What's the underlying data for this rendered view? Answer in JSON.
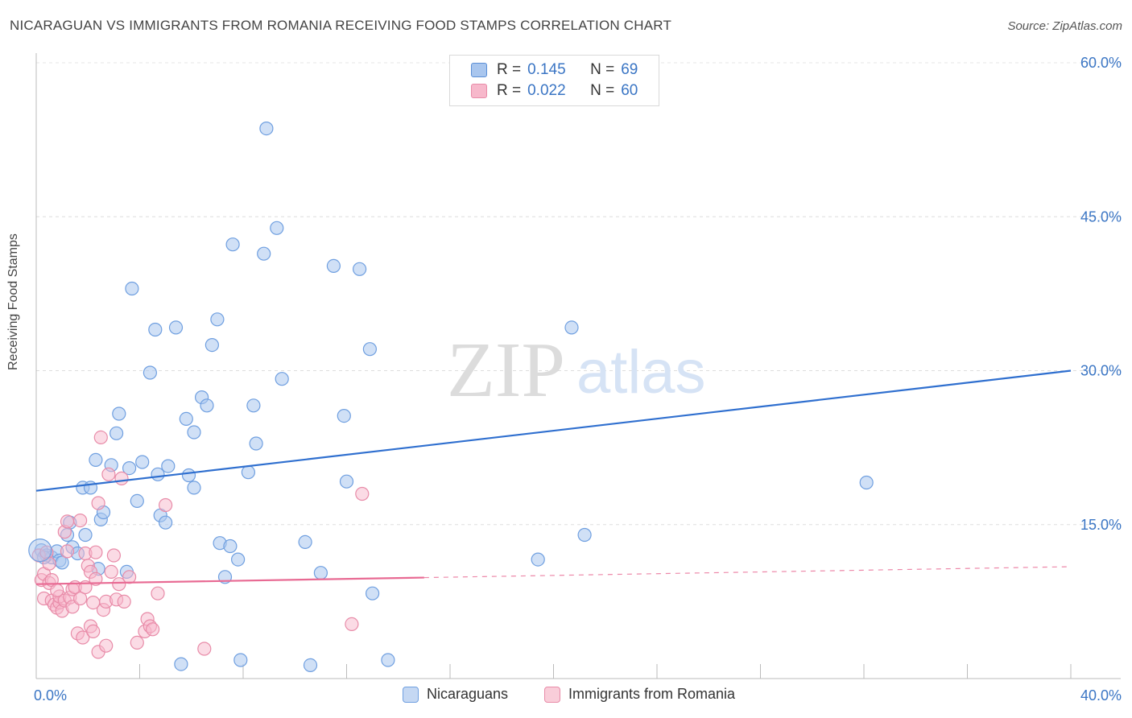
{
  "title": "NICARAGUAN VS IMMIGRANTS FROM ROMANIA RECEIVING FOOD STAMPS CORRELATION CHART",
  "source": "Source: ZipAtlas.com",
  "watermark": {
    "zip": "ZIP",
    "atlas": "atlas"
  },
  "legend_top": {
    "r_label": "R =",
    "n_label": "N =",
    "rows": [
      {
        "r": "0.145",
        "n": "69",
        "color": "#a9c6ee",
        "stroke": "#5b8fd6"
      },
      {
        "r": "0.022",
        "n": "60",
        "color": "#f7b8cb",
        "stroke": "#e88ba8"
      }
    ]
  },
  "bottom_legend": [
    {
      "label": "Nicaraguans",
      "color": "#c5d8f3",
      "stroke": "#6f9fe0"
    },
    {
      "label": "Immigrants from Romania",
      "color": "#f9cdd9",
      "stroke": "#e88ba8"
    }
  ],
  "chart_data": {
    "type": "scatter",
    "title": "NICARAGUAN VS IMMIGRANTS FROM ROMANIA RECEIVING FOOD STAMPS CORRELATION CHART",
    "xlabel": "",
    "ylabel": "Receiving Food Stamps",
    "xlim": [
      0,
      40
    ],
    "ylim": [
      0,
      60
    ],
    "x_tick_labels": [
      "0.0%",
      "40.0%"
    ],
    "y_tick_labels": [
      "15.0%",
      "30.0%",
      "45.0%",
      "60.0%"
    ],
    "y_ticks": [
      15,
      30,
      45,
      60
    ],
    "grid": true,
    "series": [
      {
        "name": "Nicaraguans",
        "color": "#a9c6ee",
        "stroke": "#6f9fe0",
        "line_color": "#2f6fcf",
        "trend": {
          "x": [
            0,
            40
          ],
          "y": [
            18.3,
            30.0
          ],
          "dashed_from": null
        },
        "points": [
          [
            0.2,
            12.5
          ],
          [
            0.4,
            12.0
          ],
          [
            0.6,
            11.8
          ],
          [
            0.8,
            12.4
          ],
          [
            0.9,
            11.5
          ],
          [
            1.2,
            14.0
          ],
          [
            1.3,
            15.2
          ],
          [
            1.4,
            12.8
          ],
          [
            1.6,
            12.2
          ],
          [
            1.8,
            18.6
          ],
          [
            1.9,
            14.0
          ],
          [
            2.1,
            18.6
          ],
          [
            2.3,
            21.3
          ],
          [
            2.5,
            15.5
          ],
          [
            2.6,
            16.2
          ],
          [
            2.4,
            10.7
          ],
          [
            2.9,
            20.8
          ],
          [
            3.1,
            23.9
          ],
          [
            3.2,
            25.8
          ],
          [
            3.5,
            10.4
          ],
          [
            3.6,
            20.5
          ],
          [
            3.7,
            38.0
          ],
          [
            3.9,
            17.3
          ],
          [
            4.1,
            21.1
          ],
          [
            4.4,
            29.8
          ],
          [
            4.6,
            34.0
          ],
          [
            4.7,
            19.9
          ],
          [
            4.8,
            15.9
          ],
          [
            5.0,
            15.2
          ],
          [
            5.1,
            20.7
          ],
          [
            5.4,
            34.2
          ],
          [
            5.6,
            1.4
          ],
          [
            5.8,
            25.3
          ],
          [
            5.9,
            19.8
          ],
          [
            6.1,
            18.6
          ],
          [
            6.1,
            24.0
          ],
          [
            6.4,
            27.4
          ],
          [
            6.6,
            26.6
          ],
          [
            6.8,
            32.5
          ],
          [
            7.0,
            35.0
          ],
          [
            7.1,
            13.2
          ],
          [
            7.3,
            9.9
          ],
          [
            7.5,
            12.9
          ],
          [
            7.6,
            42.3
          ],
          [
            7.8,
            11.6
          ],
          [
            7.9,
            1.8
          ],
          [
            8.2,
            20.1
          ],
          [
            8.4,
            26.6
          ],
          [
            8.5,
            22.9
          ],
          [
            8.8,
            41.4
          ],
          [
            8.9,
            53.6
          ],
          [
            9.3,
            43.9
          ],
          [
            9.5,
            29.2
          ],
          [
            10.4,
            13.3
          ],
          [
            10.6,
            1.3
          ],
          [
            11.0,
            10.3
          ],
          [
            11.5,
            40.2
          ],
          [
            11.9,
            25.6
          ],
          [
            12.0,
            19.2
          ],
          [
            12.5,
            39.9
          ],
          [
            12.9,
            32.1
          ],
          [
            13.0,
            8.3
          ],
          [
            13.6,
            1.8
          ],
          [
            19.4,
            11.6
          ],
          [
            20.7,
            34.2
          ],
          [
            21.2,
            14.0
          ],
          [
            32.1,
            19.1
          ],
          [
            0.3,
            11.8
          ],
          [
            1.0,
            11.3
          ]
        ]
      },
      {
        "name": "Immigrants from Romania",
        "color": "#f7b8cb",
        "stroke": "#e88ba8",
        "line_color": "#e86a93",
        "trend": {
          "x": [
            0,
            40
          ],
          "y": [
            9.2,
            10.9
          ],
          "dashed_from": 15.0
        },
        "points": [
          [
            0.1,
            12.0
          ],
          [
            0.2,
            9.6
          ],
          [
            0.3,
            7.8
          ],
          [
            0.3,
            10.2
          ],
          [
            0.4,
            12.3
          ],
          [
            0.5,
            9.3
          ],
          [
            0.6,
            7.6
          ],
          [
            0.6,
            9.6
          ],
          [
            0.7,
            7.2
          ],
          [
            0.8,
            6.9
          ],
          [
            0.9,
            7.4
          ],
          [
            0.9,
            8.0
          ],
          [
            1.0,
            6.6
          ],
          [
            1.1,
            7.6
          ],
          [
            1.1,
            14.3
          ],
          [
            1.2,
            15.3
          ],
          [
            1.3,
            7.9
          ],
          [
            1.4,
            7.0
          ],
          [
            1.4,
            8.7
          ],
          [
            1.5,
            8.9
          ],
          [
            1.6,
            4.4
          ],
          [
            1.7,
            7.8
          ],
          [
            1.7,
            15.4
          ],
          [
            1.8,
            4.0
          ],
          [
            1.9,
            8.9
          ],
          [
            1.9,
            12.2
          ],
          [
            2.0,
            11.0
          ],
          [
            2.1,
            10.4
          ],
          [
            2.1,
            5.1
          ],
          [
            2.2,
            4.6
          ],
          [
            2.3,
            12.3
          ],
          [
            2.3,
            9.7
          ],
          [
            2.4,
            2.6
          ],
          [
            2.4,
            17.1
          ],
          [
            2.5,
            23.5
          ],
          [
            2.6,
            6.7
          ],
          [
            2.7,
            7.5
          ],
          [
            2.7,
            3.2
          ],
          [
            2.8,
            19.9
          ],
          [
            2.9,
            10.4
          ],
          [
            3.0,
            12.0
          ],
          [
            3.1,
            7.7
          ],
          [
            3.2,
            9.2
          ],
          [
            3.3,
            19.5
          ],
          [
            3.4,
            7.5
          ],
          [
            3.6,
            9.9
          ],
          [
            3.9,
            3.5
          ],
          [
            4.2,
            4.6
          ],
          [
            4.3,
            5.8
          ],
          [
            4.4,
            5.1
          ],
          [
            4.5,
            4.8
          ],
          [
            4.7,
            8.3
          ],
          [
            5.0,
            16.9
          ],
          [
            6.5,
            2.9
          ],
          [
            12.2,
            5.3
          ],
          [
            12.6,
            18.0
          ],
          [
            0.5,
            11.2
          ],
          [
            1.2,
            12.4
          ],
          [
            2.2,
            7.4
          ],
          [
            0.8,
            8.6
          ]
        ]
      }
    ]
  }
}
